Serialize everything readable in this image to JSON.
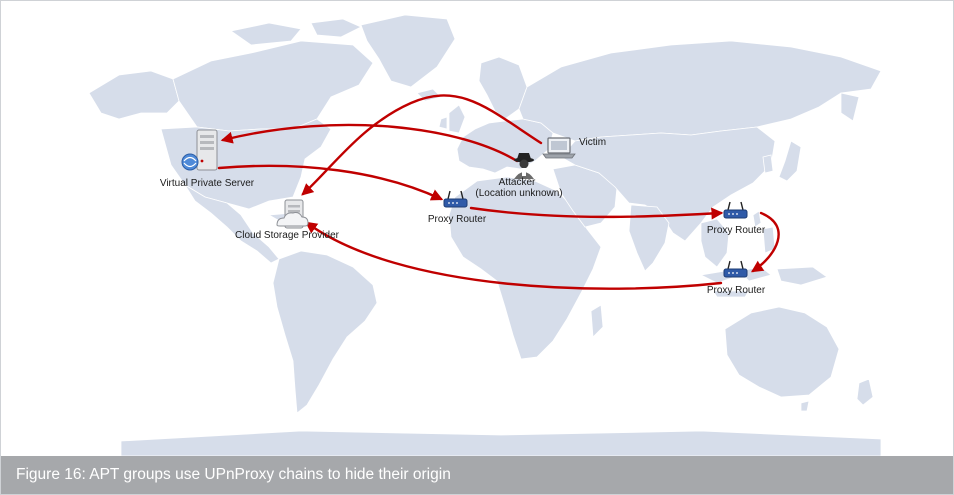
{
  "caption": "Figure 16: APT groups use UPnProxy chains to hide their origin",
  "colors": {
    "land": "#d6ddea",
    "land_border": "#ffffff",
    "arrow": "#c00000",
    "caption_bg": "#a6a8ab",
    "caption_text": "#ffffff"
  },
  "nodes": [
    {
      "id": "vps",
      "icon": "server-icon",
      "label_lines": [
        "Virtual Private Server"
      ]
    },
    {
      "id": "cloud",
      "icon": "cloud-server-icon",
      "label_lines": [
        "Cloud Storage Provider"
      ]
    },
    {
      "id": "attacker",
      "icon": "spy-icon",
      "label_lines": [
        "Attacker",
        "(Location unknown)"
      ]
    },
    {
      "id": "victim",
      "icon": "laptop-icon",
      "label_lines": [
        "Victim"
      ]
    },
    {
      "id": "router_eu",
      "icon": "router-icon",
      "label_lines": [
        "Proxy Router"
      ]
    },
    {
      "id": "router_asia",
      "icon": "router-icon",
      "label_lines": [
        "Proxy Router"
      ]
    },
    {
      "id": "router_sea",
      "icon": "router-icon",
      "label_lines": [
        "Proxy Router"
      ]
    }
  ],
  "connections": [
    {
      "from": "attacker",
      "to": "vps"
    },
    {
      "from": "vps",
      "to": "router_eu"
    },
    {
      "from": "router_eu",
      "to": "router_asia"
    },
    {
      "from": "router_asia",
      "to": "router_sea"
    },
    {
      "from": "router_sea",
      "to": "cloud"
    },
    {
      "from": "victim",
      "to": "cloud"
    }
  ]
}
